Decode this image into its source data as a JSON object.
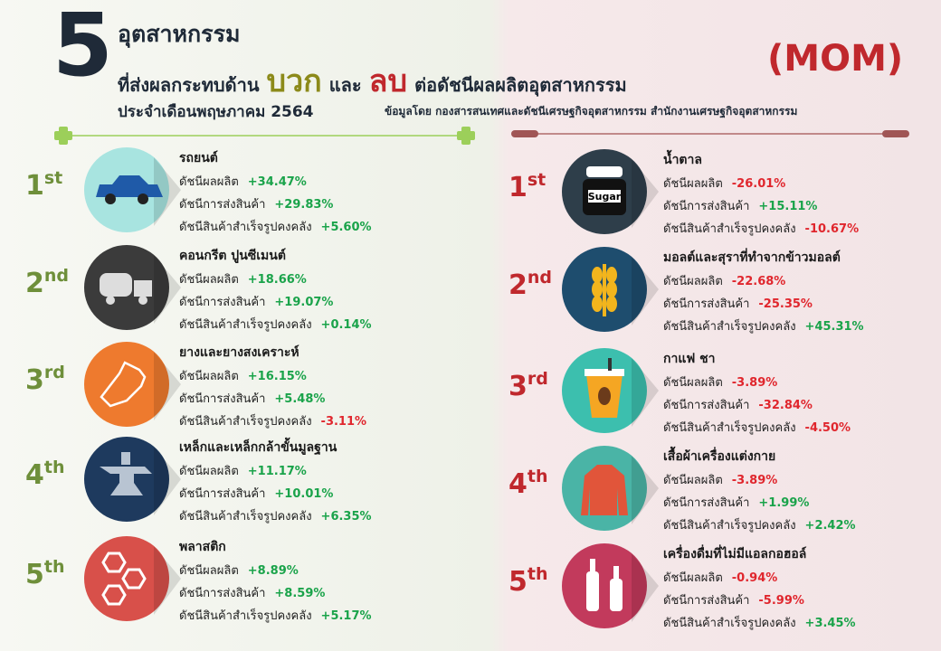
{
  "header": {
    "number": "5",
    "title": "อุตสาหกรรม",
    "line2": [
      "ที่ส่งผลกระทบด้าน",
      "บวก",
      "และ",
      "ลบ",
      "ต่อดัชนีผลผลิตอุตสาหกรรม"
    ],
    "period": "ประจำเดือนพฤษภาคม 2564",
    "source": "ข้อมูลโดย กองสารสนเทศและดัชนีเศรษฐกิจอุตสาหกรรม สำนักงานเศรษฐกิจอุตสาหกรรม",
    "basis": "(MOM)"
  },
  "positive": [
    {
      "rank": "1",
      "suffix": "st",
      "name": "รถยนต์",
      "metrics": [
        {
          "label": "ดัชนีผลผลิต",
          "value": "+34.47%"
        },
        {
          "label": "ดัชนีการส่งสินค้า",
          "value": "+29.83%"
        },
        {
          "label": "ดัชนีสินค้าสำเร็จรูปคงคลัง",
          "value": "+5.60%"
        }
      ]
    },
    {
      "rank": "2",
      "suffix": "nd",
      "name": "คอนกรีต ปูนซีเมนต์",
      "metrics": [
        {
          "label": "ดัชนีผลผลิต",
          "value": "+18.66%"
        },
        {
          "label": "ดัชนีการส่งสินค้า",
          "value": "+19.07%"
        },
        {
          "label": "ดัชนีสินค้าสำเร็จรูปคงคลัง",
          "value": "+0.14%"
        }
      ]
    },
    {
      "rank": "3",
      "suffix": "rd",
      "name": "ยางและยางสงเคราะห์",
      "metrics": [
        {
          "label": "ดัชนีผลผลิต",
          "value": "+16.15%"
        },
        {
          "label": "ดัชนีการส่งสินค้า",
          "value": "+5.48%"
        },
        {
          "label": "ดัชนีสินค้าสำเร็จรูปคงคลัง",
          "value": "-3.11%"
        }
      ]
    },
    {
      "rank": "4",
      "suffix": "th",
      "name": "เหล็กและเหล็กกล้าขั้นมูลฐาน",
      "metrics": [
        {
          "label": "ดัชนีผลผลิต",
          "value": "+11.17%"
        },
        {
          "label": "ดัชนีการส่งสินค้า",
          "value": "+10.01%"
        },
        {
          "label": "ดัชนีสินค้าสำเร็จรูปคงคลัง",
          "value": "+6.35%"
        }
      ]
    },
    {
      "rank": "5",
      "suffix": "th",
      "name": "พลาสติก",
      "metrics": [
        {
          "label": "ดัชนีผลผลิต",
          "value": "+8.89%"
        },
        {
          "label": "ดัชนีการส่งสินค้า",
          "value": "+8.59%"
        },
        {
          "label": "ดัชนีสินค้าสำเร็จรูปคงคลัง",
          "value": "+5.17%"
        }
      ]
    }
  ],
  "negative": [
    {
      "rank": "1",
      "suffix": "st",
      "name": "น้ำตาล",
      "icon_label": "Sugar",
      "metrics": [
        {
          "label": "ดัชนีผลผลิต",
          "value": "-26.01%"
        },
        {
          "label": "ดัชนีการส่งสินค้า",
          "value": "+15.11%"
        },
        {
          "label": "ดัชนีสินค้าสำเร็จรูปคงคลัง",
          "value": "-10.67%"
        }
      ]
    },
    {
      "rank": "2",
      "suffix": "nd",
      "name": "มอลต์และสุราที่ทำจากข้าวมอลต์",
      "metrics": [
        {
          "label": "ดัชนีผลผลิต",
          "value": "-22.68%"
        },
        {
          "label": "ดัชนีการส่งสินค้า",
          "value": "-25.35%"
        },
        {
          "label": "ดัชนีสินค้าสำเร็จรูปคงคลัง",
          "value": "+45.31%"
        }
      ]
    },
    {
      "rank": "3",
      "suffix": "rd",
      "name": "กาแฟ ชา",
      "metrics": [
        {
          "label": "ดัชนีผลผลิต",
          "value": "-3.89%"
        },
        {
          "label": "ดัชนีการส่งสินค้า",
          "value": "-32.84%"
        },
        {
          "label": "ดัชนีสินค้าสำเร็จรูปคงคลัง",
          "value": "-4.50%"
        }
      ]
    },
    {
      "rank": "4",
      "suffix": "th",
      "name": "เสื้อผ้าเครื่องแต่งกาย",
      "metrics": [
        {
          "label": "ดัชนีผลผลิต",
          "value": "-3.89%"
        },
        {
          "label": "ดัชนีการส่งสินค้า",
          "value": "+1.99%"
        },
        {
          "label": "ดัชนีสินค้าสำเร็จรูปคงคลัง",
          "value": "+2.42%"
        }
      ]
    },
    {
      "rank": "5",
      "suffix": "th",
      "name": "เครื่องดื่มที่ไม่มีแอลกอฮอล์",
      "metrics": [
        {
          "label": "ดัชนีผลผลิต",
          "value": "-0.94%"
        },
        {
          "label": "ดัชนีการส่งสินค้า",
          "value": "-5.99%"
        },
        {
          "label": "ดัชนีสินค้าสำเร็จรูปคงคลัง",
          "value": "+3.45%"
        }
      ]
    }
  ]
}
